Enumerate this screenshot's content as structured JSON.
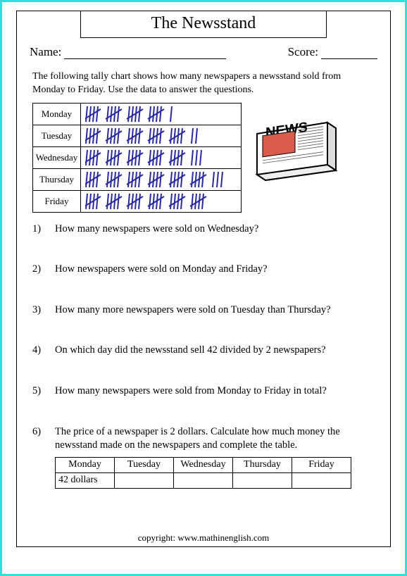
{
  "title": "The Newsstand",
  "name_label": "Name:",
  "score_label": "Score:",
  "intro": "The following tally chart shows how many newspapers a newsstand sold from Monday to Friday. Use the data to answer the questions.",
  "tally_color": "#2a2aa0",
  "tally": {
    "days": [
      "Monday",
      "Tuesday",
      "Wednesday",
      "Thursday",
      "Friday"
    ],
    "groups": [
      [
        5,
        5,
        5,
        5,
        1
      ],
      [
        5,
        5,
        5,
        5,
        5,
        2
      ],
      [
        5,
        5,
        5,
        5,
        5,
        3
      ],
      [
        5,
        5,
        5,
        5,
        5,
        5,
        3
      ],
      [
        5,
        5,
        5,
        5,
        5,
        5
      ]
    ]
  },
  "questions": [
    "How many newspapers were sold on Wednesday?",
    "How newspapers were sold on Monday and Friday?",
    "How many more newspapers were sold on Tuesday than Thursday?",
    "On which day did the newsstand sell 42 divided by 2 newspapers?",
    "How many newspapers were sold from Monday to Friday in total?",
    "The price of a newspaper is 2 dollars. Calculate how much money the newsstand made on the newspapers and complete the table."
  ],
  "money_table": {
    "headers": [
      "Monday",
      "Tuesday",
      "Wednesday",
      "Thursday",
      "Friday"
    ],
    "row": [
      "42 dollars",
      "",
      "",
      "",
      ""
    ]
  },
  "copyright": "copyright:    www.mathinenglish.com",
  "news_label": "NEWS"
}
